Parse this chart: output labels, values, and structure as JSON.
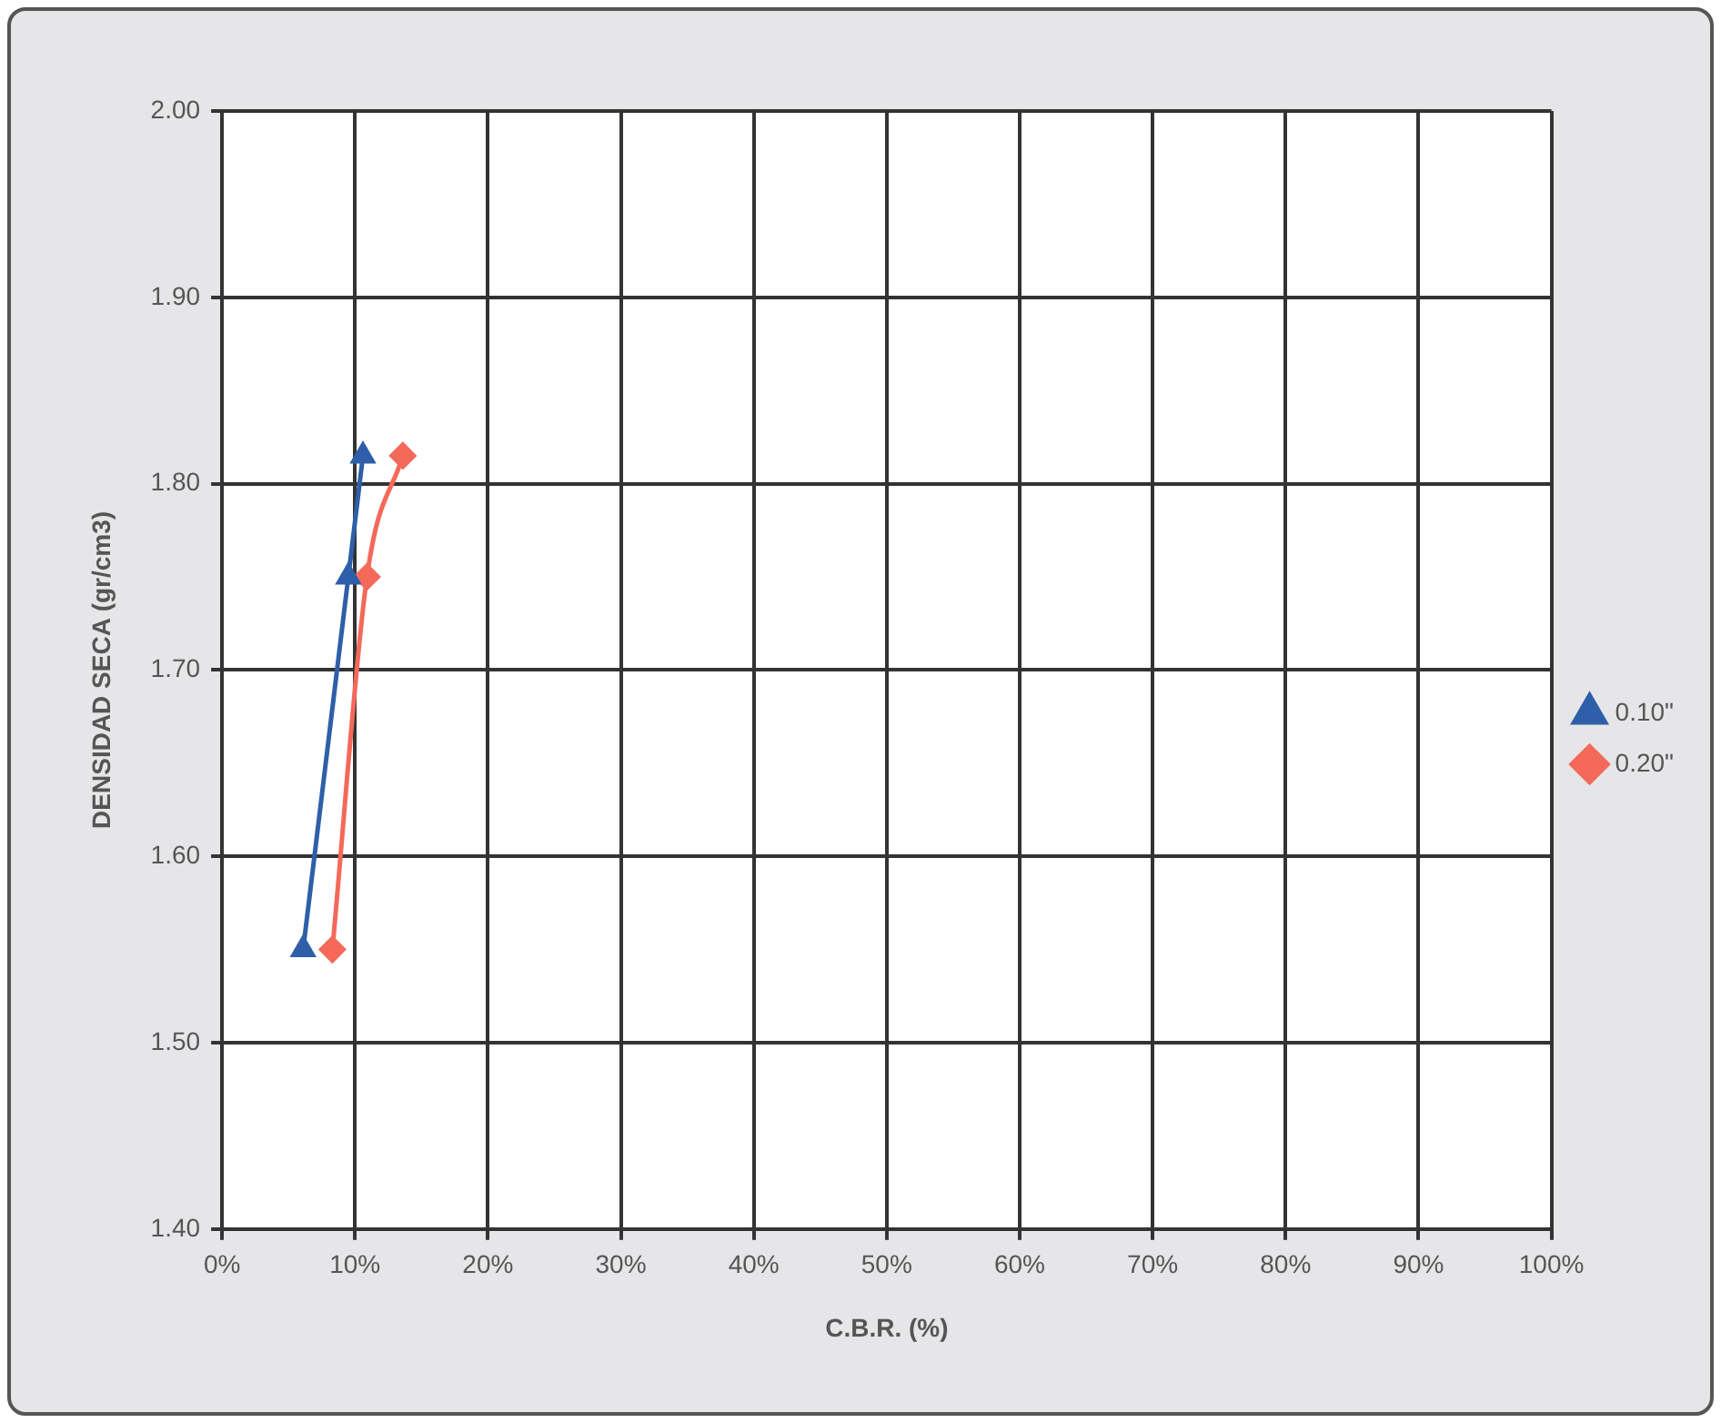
{
  "chart_data": {
    "type": "line",
    "xlabel": "C.B.R. (%)",
    "ylabel": "DENSIDAD SECA (gr/cm3)",
    "xlim": [
      0,
      100
    ],
    "xticks": [
      {
        "value": 0,
        "label": "0%"
      },
      {
        "value": 10,
        "label": "10%"
      },
      {
        "value": 20,
        "label": "20%"
      },
      {
        "value": 30,
        "label": "30%"
      },
      {
        "value": 40,
        "label": "40%"
      },
      {
        "value": 50,
        "label": "50%"
      },
      {
        "value": 60,
        "label": "60%"
      },
      {
        "value": 70,
        "label": "70%"
      },
      {
        "value": 80,
        "label": "80%"
      },
      {
        "value": 90,
        "label": "90%"
      },
      {
        "value": 100,
        "label": "100%"
      }
    ],
    "ylim": [
      1.4,
      2.0
    ],
    "yticks": [
      {
        "value": 1.4,
        "label": "1.40"
      },
      {
        "value": 1.5,
        "label": "1.50"
      },
      {
        "value": 1.6,
        "label": "1.60"
      },
      {
        "value": 1.7,
        "label": "1.70"
      },
      {
        "value": 1.8,
        "label": "1.80"
      },
      {
        "value": 1.9,
        "label": "1.90"
      },
      {
        "value": 2.0,
        "label": "2.00"
      }
    ],
    "grid": true,
    "legend": "right",
    "line_style": "solid",
    "series": [
      {
        "name": "0.10\"",
        "color": "#2e5fa8",
        "marker": "triangle",
        "x": [
          6.1,
          9.5,
          10.6
        ],
        "values": [
          1.55,
          1.75,
          1.815
        ]
      },
      {
        "name": "0.20\"",
        "color": "#f4695a",
        "marker": "diamond",
        "x": [
          8.3,
          10.9,
          13.6
        ],
        "values": [
          1.55,
          1.75,
          1.815
        ]
      }
    ]
  }
}
